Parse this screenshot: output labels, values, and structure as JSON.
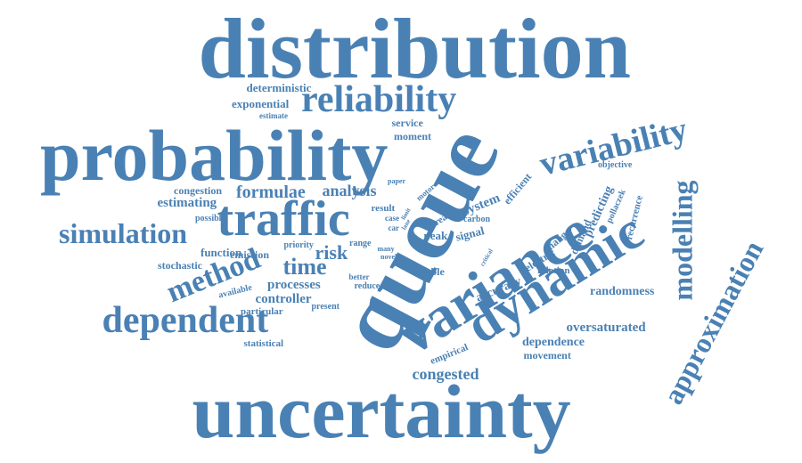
{
  "color": "#4a81b4",
  "words": [
    {
      "text": "distribution"
    },
    {
      "text": "probability"
    },
    {
      "text": "uncertainty"
    },
    {
      "text": "queue"
    },
    {
      "text": "variance"
    },
    {
      "text": "dynamic"
    },
    {
      "text": "traffic"
    },
    {
      "text": "reliability"
    },
    {
      "text": "variability"
    },
    {
      "text": "modelling"
    },
    {
      "text": "approximation"
    },
    {
      "text": "dependent"
    },
    {
      "text": "method"
    },
    {
      "text": "simulation"
    },
    {
      "text": "time"
    },
    {
      "text": "formulae"
    },
    {
      "text": "analysis"
    },
    {
      "text": "risk"
    },
    {
      "text": "congested"
    },
    {
      "text": "deterministic"
    },
    {
      "text": "exponential"
    },
    {
      "text": "estimate"
    },
    {
      "text": "service"
    },
    {
      "text": "moment"
    },
    {
      "text": "congestion"
    },
    {
      "text": "estimating"
    },
    {
      "text": "possible"
    },
    {
      "text": "emission"
    },
    {
      "text": "function"
    },
    {
      "text": "priority"
    },
    {
      "text": "range"
    },
    {
      "text": "stochastic"
    },
    {
      "text": "available"
    },
    {
      "text": "processes"
    },
    {
      "text": "controller"
    },
    {
      "text": "particular"
    },
    {
      "text": "statistical"
    },
    {
      "text": "present"
    },
    {
      "text": "better"
    },
    {
      "text": "reduce"
    },
    {
      "text": "many"
    },
    {
      "text": "novel"
    },
    {
      "text": "paper"
    },
    {
      "text": "motor"
    },
    {
      "text": "result"
    },
    {
      "text": "case"
    },
    {
      "text": "car"
    },
    {
      "text": "limit"
    },
    {
      "text": "lane"
    },
    {
      "text": "dream"
    },
    {
      "text": "peak"
    },
    {
      "text": "carbon"
    },
    {
      "text": "signal"
    },
    {
      "text": "system"
    },
    {
      "text": "efficient"
    },
    {
      "text": "objective"
    },
    {
      "text": "predicting"
    },
    {
      "text": "pollaczek"
    },
    {
      "text": "recurrence"
    },
    {
      "text": "change"
    },
    {
      "text": "demand"
    },
    {
      "text": "electric"
    },
    {
      "text": "critical"
    },
    {
      "text": "relation"
    },
    {
      "text": "enable"
    },
    {
      "text": "accuracy"
    },
    {
      "text": "empirical"
    },
    {
      "text": "randomness"
    },
    {
      "text": "oversaturated"
    },
    {
      "text": "dependence"
    },
    {
      "text": "movement"
    }
  ]
}
